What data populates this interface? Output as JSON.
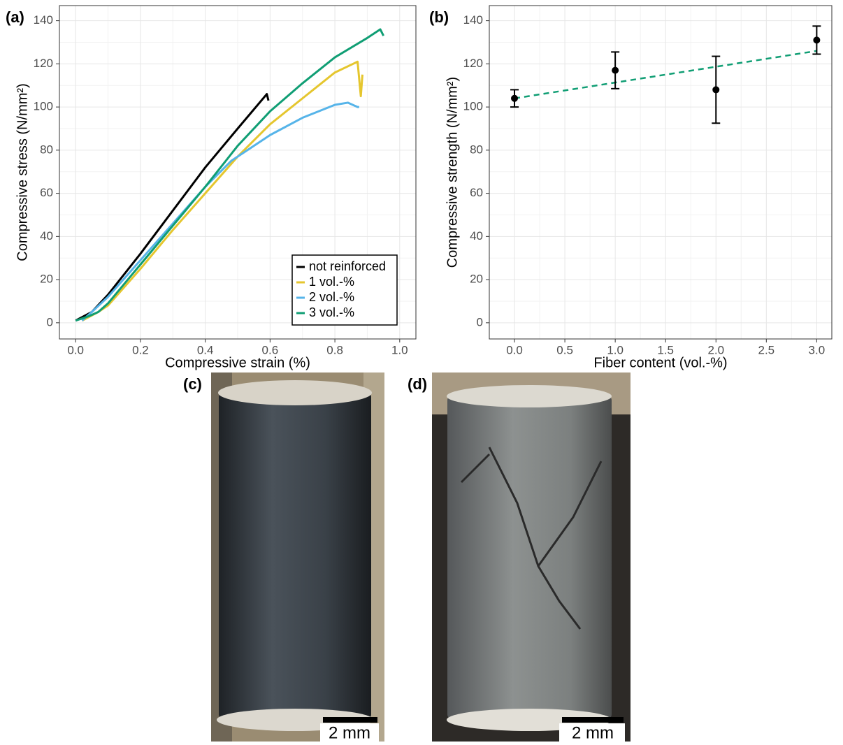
{
  "chart_data": [
    {
      "type": "line",
      "panel_label": "(a)",
      "x_label": "Compressive strain (%)",
      "y_label": "Compressive stress (N/mm²)",
      "xlim": [
        -0.05,
        1.05
      ],
      "ylim": [
        -7.5,
        147
      ],
      "xticks": [
        {
          "value": 0,
          "label": "0.0"
        },
        {
          "value": 0.2,
          "label": "0.2"
        },
        {
          "value": 0.4,
          "label": "0.4"
        },
        {
          "value": 0.6,
          "label": "0.6"
        },
        {
          "value": 0.8,
          "label": "0.8"
        },
        {
          "value": 1,
          "label": "1.0"
        }
      ],
      "yticks": [
        0,
        20,
        40,
        60,
        80,
        100,
        120,
        140
      ],
      "grid": true,
      "legend": "bottom-right",
      "series": [
        {
          "name": "not reinforced",
          "color": "#000000",
          "x": [
            0,
            0.05,
            0.1,
            0.2,
            0.3,
            0.4,
            0.5,
            0.59,
            0.595
          ],
          "values": [
            1,
            5,
            13,
            32,
            52,
            72,
            90,
            106,
            103
          ]
        },
        {
          "name": "1 vol.-%",
          "color": "#e5c62e",
          "x": [
            0.02,
            0.07,
            0.1,
            0.2,
            0.3,
            0.4,
            0.5,
            0.6,
            0.7,
            0.8,
            0.87,
            0.88,
            0.885
          ],
          "values": [
            1,
            5,
            8,
            25,
            43,
            60,
            77,
            92,
            104,
            116,
            121,
            105,
            115
          ]
        },
        {
          "name": "2 vol.-%",
          "color": "#56b4e9",
          "x": [
            0.02,
            0.05,
            0.1,
            0.2,
            0.3,
            0.4,
            0.48,
            0.6,
            0.7,
            0.8,
            0.84,
            0.87,
            0.875
          ],
          "values": [
            1,
            5,
            12,
            29,
            46,
            63,
            75,
            87,
            95,
            101,
            102,
            100,
            100
          ]
        },
        {
          "name": "3 vol.-%",
          "color": "#109e74",
          "x": [
            0,
            0.04,
            0.07,
            0.1,
            0.2,
            0.3,
            0.4,
            0.5,
            0.6,
            0.7,
            0.8,
            0.9,
            0.94,
            0.95
          ],
          "values": [
            1,
            3,
            5,
            9,
            27,
            45,
            63,
            82,
            98,
            111,
            123,
            132,
            136,
            133
          ]
        }
      ]
    },
    {
      "type": "errorbar",
      "panel_label": "(b)",
      "x_label": "Fiber content (vol.-%)",
      "y_label": "Compressive strength (N/mm²)",
      "xlim": [
        -0.25,
        3.15
      ],
      "ylim": [
        -7.5,
        147
      ],
      "xticks": [
        {
          "value": 0,
          "label": "0.0"
        },
        {
          "value": 0.5,
          "label": "0.5"
        },
        {
          "value": 1,
          "label": "1.0"
        },
        {
          "value": 1.5,
          "label": "1.5"
        },
        {
          "value": 2,
          "label": "2.0"
        },
        {
          "value": 2.5,
          "label": "2.5"
        },
        {
          "value": 3,
          "label": "3.0"
        }
      ],
      "yticks": [
        0,
        20,
        40,
        60,
        80,
        100,
        120,
        140
      ],
      "grid": true,
      "x": [
        0,
        1,
        2,
        3
      ],
      "values": [
        104,
        117,
        108,
        131
      ],
      "errors": [
        4,
        8.5,
        15.5,
        6.5
      ],
      "color": "#000000",
      "trend": {
        "x": [
          0,
          3
        ],
        "values": [
          104,
          126
        ],
        "color": "#109e74"
      }
    }
  ],
  "photos": [
    {
      "label": "(c)",
      "scale_bar": "2 mm"
    },
    {
      "label": "(d)",
      "scale_bar": "2 mm"
    }
  ]
}
